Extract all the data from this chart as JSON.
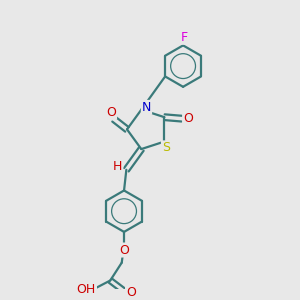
{
  "background_color": "#e8e8e8",
  "bond_color": "#3a7a7a",
  "atom_colors": {
    "F": "#dd00dd",
    "N": "#0000cc",
    "S": "#bbbb00",
    "O": "#cc0000",
    "H": "#cc0000"
  },
  "figsize": [
    3.0,
    3.0
  ],
  "dpi": 100,
  "xlim": [
    0,
    10
  ],
  "ylim": [
    0,
    10
  ]
}
